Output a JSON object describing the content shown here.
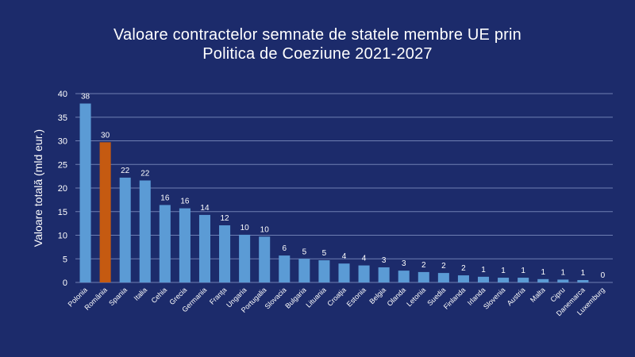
{
  "chart_data": {
    "type": "bar",
    "title_line1": "Valoare contractelor semnate de statele membre UE prin",
    "title_line2": "Politica de Coeziune 2021-2027",
    "ylabel": "Valoare totală (mld eur.)",
    "xlabel": "",
    "ylim": [
      0,
      40
    ],
    "yticks": [
      0,
      5,
      10,
      15,
      20,
      25,
      30,
      35,
      40
    ],
    "grid": true,
    "categories": [
      "Polonia",
      "România",
      "Spania",
      "Italia",
      "Cehia",
      "Grecia",
      "Germania",
      "Franța",
      "Ungaria",
      "Portugalia",
      "Slovacia",
      "Bulgaria",
      "Lituania",
      "Croația",
      "Estonia",
      "Belgia",
      "Olanda",
      "Letonia",
      "Suedia",
      "Finlanda",
      "Irlanda",
      "Slovenia",
      "Austria",
      "Malta",
      "Cipru",
      "Danemarca",
      "Luxemburg"
    ],
    "values": [
      37.9,
      29.7,
      22.2,
      21.6,
      16.4,
      15.7,
      14.3,
      12.1,
      10.1,
      9.7,
      5.7,
      5.0,
      4.7,
      4.0,
      3.6,
      3.2,
      2.5,
      2.2,
      2.0,
      1.5,
      1.2,
      1.0,
      1.0,
      0.7,
      0.6,
      0.5,
      0.0
    ],
    "data_labels": [
      "38",
      "30",
      "22",
      "22",
      "16",
      "16",
      "14",
      "12",
      "10",
      "10",
      "6",
      "5",
      "5",
      "4",
      "4",
      "3",
      "3",
      "2",
      "2",
      "2",
      "1",
      "1",
      "1",
      "1",
      "1",
      "1",
      "0"
    ],
    "colors": {
      "default_bar": "#5b9bd5",
      "highlight_bar": "#c55a11",
      "highlight_category": "România",
      "background": "#1c2b6b",
      "grid": "#6f7fb3"
    }
  }
}
